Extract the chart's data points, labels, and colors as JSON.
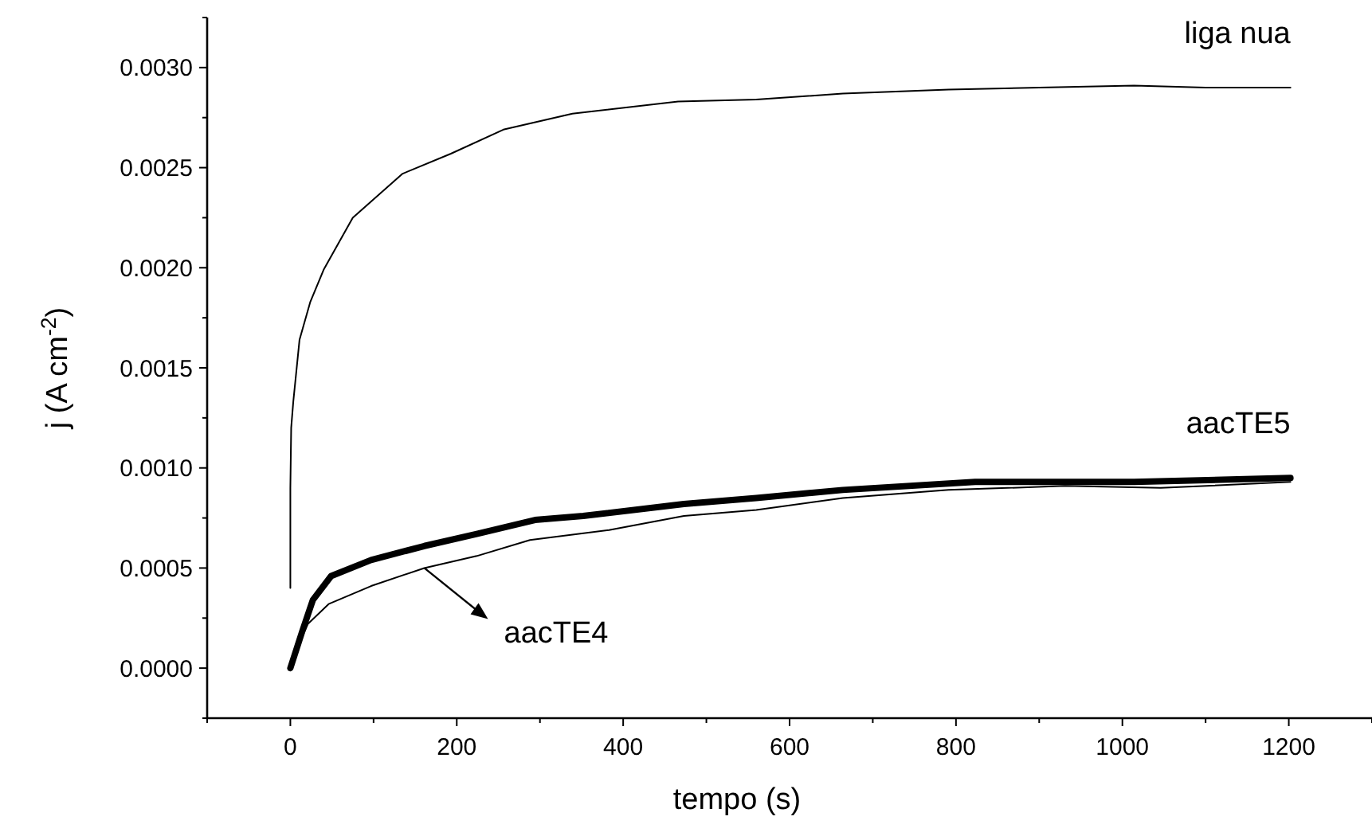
{
  "chart_data": {
    "type": "line",
    "xlabel": "tempo (s)",
    "ylabel": "j (A cm$^{-2}$)",
    "xlim": [
      -100,
      1300
    ],
    "xticks": [
      {
        "value": -100,
        "label": null
      },
      0,
      {
        "value": 100,
        "label": null
      },
      200,
      {
        "value": 300,
        "label": null
      },
      400,
      {
        "value": 500,
        "label": null
      },
      600,
      {
        "value": 700,
        "label": null
      },
      800,
      {
        "value": 900,
        "label": null
      },
      1000,
      {
        "value": 1100,
        "label": null
      },
      1200,
      {
        "value": 1300,
        "label": null
      }
    ],
    "ylim": [
      -0.00025,
      0.00325
    ],
    "yticks": [
      {
        "value": -0.00025,
        "label": null
      },
      {
        "value": 0,
        "label": "0.0000"
      },
      {
        "value": 0.00025,
        "label": null
      },
      {
        "value": 0.0005,
        "label": "0.0005"
      },
      {
        "value": 0.00075,
        "label": null
      },
      {
        "value": 0.001,
        "label": "0.0010"
      },
      {
        "value": 0.00125,
        "label": null
      },
      {
        "value": 0.0015,
        "label": "0.0015"
      },
      {
        "value": 0.00175,
        "label": null
      },
      {
        "value": 0.002,
        "label": "0.0020"
      },
      {
        "value": 0.00225,
        "label": null
      },
      {
        "value": 0.0025,
        "label": "0.0025"
      },
      {
        "value": 0.00275,
        "label": null
      },
      {
        "value": 0.003,
        "label": "0.0030"
      },
      {
        "value": 0.00325,
        "label": null
      }
    ],
    "grid": false,
    "marker": "none",
    "line_style": "solid",
    "series": [
      {
        "name": "liga nua",
        "color": "#000000",
        "x": [
          0,
          0,
          1,
          3.5,
          11,
          24,
          40,
          75,
          135,
          193,
          256,
          339,
          466,
          560,
          664,
          791,
          900,
          1014,
          1100,
          1202
        ],
        "values": [
          0.0004,
          0.0009,
          0.0012,
          0.00133,
          0.00164,
          0.00183,
          0.00199,
          0.00225,
          0.00247,
          0.00257,
          0.00269,
          0.00277,
          0.00283,
          0.00284,
          0.00287,
          0.00289,
          0.0029,
          0.00291,
          0.0029,
          0.0029
        ]
      },
      {
        "name": "aacTE5",
        "color": "#000000",
        "x": [
          0,
          14,
          27,
          49,
          97,
          161,
          224,
          294,
          352,
          473,
          560,
          664,
          823,
          1014,
          1202
        ],
        "values": [
          0,
          0.00018,
          0.00034,
          0.00046,
          0.00054,
          0.00061,
          0.00067,
          0.00074,
          0.00076,
          0.00082,
          0.00085,
          0.00089,
          0.00093,
          0.00093,
          0.00095
        ]
      },
      {
        "name": "aacTE4",
        "color": "#000000",
        "x": [
          0,
          10,
          21,
          46,
          97,
          161,
          224,
          288,
          383,
          473,
          560,
          664,
          791,
          931,
          1046,
          1202
        ],
        "values": [
          0,
          0.00012,
          0.00022,
          0.00032,
          0.00041,
          0.0005,
          0.00056,
          0.00064,
          0.00069,
          0.00076,
          0.00079,
          0.00085,
          0.00089,
          0.00091,
          0.0009,
          0.00093
        ]
      }
    ]
  }
}
